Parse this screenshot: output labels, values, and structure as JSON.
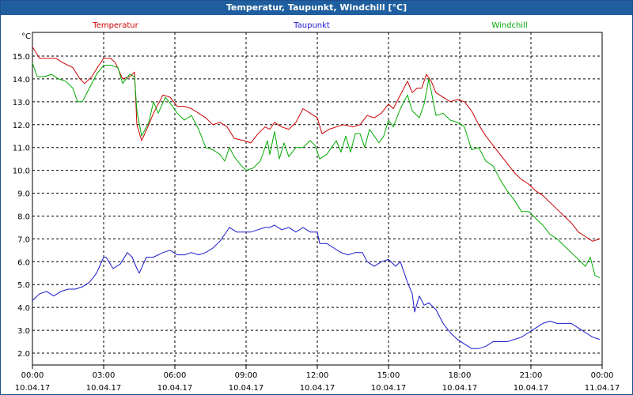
{
  "window": {
    "title": "Temperatur, Taupunkt, Windchill [°C]"
  },
  "chart_data": {
    "type": "line",
    "title": "Temperatur, Taupunkt, Windchill [°C]",
    "ylabel": "°C",
    "ylim": [
      1.5,
      15.5
    ],
    "yticks": [
      "2.0",
      "3.0",
      "4.0",
      "5.0",
      "6.0",
      "7.0",
      "8.0",
      "9.0",
      "10.0",
      "11.0",
      "12.0",
      "13.0",
      "14.0",
      "15.0"
    ],
    "xlim": [
      0,
      24
    ],
    "xticks": [
      {
        "time": "00:00",
        "date": "10.04.17"
      },
      {
        "time": "03:00",
        "date": "10.04.17"
      },
      {
        "time": "06:00",
        "date": "10.04.17"
      },
      {
        "time": "09:00",
        "date": "10.04.17"
      },
      {
        "time": "12:00",
        "date": "10.04.17"
      },
      {
        "time": "15:00",
        "date": "10.04.17"
      },
      {
        "time": "18:00",
        "date": "10.04.17"
      },
      {
        "time": "21:00",
        "date": "10.04.17"
      },
      {
        "time": "00:00",
        "date": "11.04.17"
      }
    ],
    "grid": true,
    "legend_position": "top",
    "series": [
      {
        "name": "Temperatur",
        "color": "#cc0000",
        "points": [
          [
            0.0,
            15.4
          ],
          [
            0.3,
            14.9
          ],
          [
            0.7,
            14.9
          ],
          [
            1.0,
            14.9
          ],
          [
            1.3,
            14.7
          ],
          [
            1.7,
            14.5
          ],
          [
            2.0,
            14.0
          ],
          [
            2.2,
            13.8
          ],
          [
            2.5,
            14.1
          ],
          [
            2.8,
            14.6
          ],
          [
            3.0,
            14.9
          ],
          [
            3.3,
            14.9
          ],
          [
            3.5,
            14.7
          ],
          [
            3.8,
            14.0
          ],
          [
            4.1,
            14.1
          ],
          [
            4.3,
            14.3
          ],
          [
            4.4,
            12.0
          ],
          [
            4.6,
            11.3
          ],
          [
            4.9,
            12.0
          ],
          [
            5.1,
            12.5
          ],
          [
            5.3,
            12.9
          ],
          [
            5.5,
            13.3
          ],
          [
            5.8,
            13.2
          ],
          [
            6.1,
            12.8
          ],
          [
            6.4,
            12.8
          ],
          [
            6.7,
            12.7
          ],
          [
            7.0,
            12.5
          ],
          [
            7.3,
            12.3
          ],
          [
            7.6,
            12.0
          ],
          [
            7.9,
            12.1
          ],
          [
            8.2,
            11.9
          ],
          [
            8.5,
            11.4
          ],
          [
            8.9,
            11.3
          ],
          [
            9.2,
            11.2
          ],
          [
            9.5,
            11.6
          ],
          [
            9.8,
            11.9
          ],
          [
            10.0,
            11.8
          ],
          [
            10.2,
            12.1
          ],
          [
            10.5,
            11.9
          ],
          [
            10.8,
            11.8
          ],
          [
            11.1,
            12.1
          ],
          [
            11.4,
            12.7
          ],
          [
            11.7,
            12.5
          ],
          [
            12.0,
            12.3
          ],
          [
            12.2,
            11.6
          ],
          [
            12.5,
            11.8
          ],
          [
            12.8,
            11.9
          ],
          [
            13.1,
            12.0
          ],
          [
            13.5,
            11.9
          ],
          [
            13.8,
            12.0
          ],
          [
            14.1,
            12.4
          ],
          [
            14.4,
            12.3
          ],
          [
            14.7,
            12.5
          ],
          [
            15.0,
            12.9
          ],
          [
            15.2,
            12.7
          ],
          [
            15.5,
            13.3
          ],
          [
            15.8,
            13.9
          ],
          [
            16.0,
            13.4
          ],
          [
            16.2,
            13.6
          ],
          [
            16.4,
            13.6
          ],
          [
            16.6,
            14.2
          ],
          [
            16.8,
            13.9
          ],
          [
            17.0,
            13.4
          ],
          [
            17.3,
            13.2
          ],
          [
            17.6,
            13.0
          ],
          [
            17.9,
            13.1
          ],
          [
            18.2,
            13.0
          ],
          [
            18.5,
            12.6
          ],
          [
            18.8,
            12.0
          ],
          [
            19.1,
            11.5
          ],
          [
            19.4,
            11.1
          ],
          [
            19.7,
            10.7
          ],
          [
            20.0,
            10.3
          ],
          [
            20.3,
            9.9
          ],
          [
            20.6,
            9.6
          ],
          [
            20.9,
            9.4
          ],
          [
            21.2,
            9.1
          ],
          [
            21.5,
            8.9
          ],
          [
            21.8,
            8.6
          ],
          [
            22.1,
            8.3
          ],
          [
            22.4,
            8.0
          ],
          [
            22.7,
            7.7
          ],
          [
            23.0,
            7.3
          ],
          [
            23.3,
            7.1
          ],
          [
            23.6,
            6.9
          ],
          [
            23.9,
            7.0
          ]
        ]
      },
      {
        "name": "Taupunkt",
        "color": "#1a1acc",
        "points": [
          [
            0.0,
            4.3
          ],
          [
            0.3,
            4.6
          ],
          [
            0.6,
            4.7
          ],
          [
            0.9,
            4.5
          ],
          [
            1.2,
            4.7
          ],
          [
            1.5,
            4.8
          ],
          [
            1.8,
            4.8
          ],
          [
            2.1,
            4.9
          ],
          [
            2.4,
            5.1
          ],
          [
            2.7,
            5.5
          ],
          [
            3.0,
            6.2
          ],
          [
            3.1,
            6.2
          ],
          [
            3.4,
            5.7
          ],
          [
            3.7,
            5.9
          ],
          [
            4.0,
            6.4
          ],
          [
            4.2,
            6.2
          ],
          [
            4.4,
            5.7
          ],
          [
            4.5,
            5.5
          ],
          [
            4.8,
            6.2
          ],
          [
            5.1,
            6.2
          ],
          [
            5.5,
            6.4
          ],
          [
            5.8,
            6.5
          ],
          [
            6.1,
            6.3
          ],
          [
            6.4,
            6.3
          ],
          [
            6.7,
            6.4
          ],
          [
            7.0,
            6.3
          ],
          [
            7.3,
            6.4
          ],
          [
            7.6,
            6.6
          ],
          [
            7.9,
            6.9
          ],
          [
            8.1,
            7.2
          ],
          [
            8.3,
            7.5
          ],
          [
            8.6,
            7.3
          ],
          [
            8.9,
            7.3
          ],
          [
            9.2,
            7.3
          ],
          [
            9.5,
            7.4
          ],
          [
            9.8,
            7.5
          ],
          [
            10.0,
            7.5
          ],
          [
            10.2,
            7.6
          ],
          [
            10.5,
            7.4
          ],
          [
            10.8,
            7.5
          ],
          [
            11.1,
            7.3
          ],
          [
            11.4,
            7.5
          ],
          [
            11.7,
            7.3
          ],
          [
            12.0,
            7.3
          ],
          [
            12.1,
            6.8
          ],
          [
            12.4,
            6.8
          ],
          [
            12.7,
            6.6
          ],
          [
            13.0,
            6.4
          ],
          [
            13.3,
            6.3
          ],
          [
            13.6,
            6.4
          ],
          [
            13.9,
            6.4
          ],
          [
            14.1,
            6.0
          ],
          [
            14.4,
            5.8
          ],
          [
            14.7,
            6.0
          ],
          [
            15.0,
            6.1
          ],
          [
            15.3,
            5.8
          ],
          [
            15.5,
            6.0
          ],
          [
            15.8,
            5.1
          ],
          [
            16.0,
            4.6
          ],
          [
            16.1,
            3.8
          ],
          [
            16.3,
            4.5
          ],
          [
            16.5,
            4.1
          ],
          [
            16.7,
            4.2
          ],
          [
            17.0,
            3.9
          ],
          [
            17.3,
            3.3
          ],
          [
            17.6,
            2.9
          ],
          [
            17.9,
            2.6
          ],
          [
            18.2,
            2.4
          ],
          [
            18.5,
            2.2
          ],
          [
            18.8,
            2.2
          ],
          [
            19.1,
            2.3
          ],
          [
            19.4,
            2.5
          ],
          [
            19.7,
            2.5
          ],
          [
            20.0,
            2.5
          ],
          [
            20.3,
            2.6
          ],
          [
            20.6,
            2.7
          ],
          [
            20.9,
            2.9
          ],
          [
            21.2,
            3.1
          ],
          [
            21.5,
            3.3
          ],
          [
            21.8,
            3.4
          ],
          [
            22.1,
            3.3
          ],
          [
            22.4,
            3.3
          ],
          [
            22.7,
            3.3
          ],
          [
            23.0,
            3.1
          ],
          [
            23.3,
            2.9
          ],
          [
            23.6,
            2.7
          ],
          [
            23.9,
            2.6
          ]
        ]
      },
      {
        "name": "Windchill",
        "color": "#00aa00",
        "points": [
          [
            0.0,
            14.7
          ],
          [
            0.2,
            14.1
          ],
          [
            0.5,
            14.1
          ],
          [
            0.8,
            14.2
          ],
          [
            1.1,
            14.0
          ],
          [
            1.4,
            13.9
          ],
          [
            1.7,
            13.6
          ],
          [
            1.9,
            13.0
          ],
          [
            2.1,
            13.0
          ],
          [
            2.4,
            13.6
          ],
          [
            2.7,
            14.2
          ],
          [
            3.0,
            14.6
          ],
          [
            3.3,
            14.6
          ],
          [
            3.6,
            14.5
          ],
          [
            3.8,
            13.8
          ],
          [
            4.1,
            14.2
          ],
          [
            4.3,
            14.1
          ],
          [
            4.4,
            12.6
          ],
          [
            4.6,
            11.5
          ],
          [
            4.9,
            12.1
          ],
          [
            5.1,
            13.0
          ],
          [
            5.3,
            12.5
          ],
          [
            5.6,
            13.2
          ],
          [
            5.9,
            12.8
          ],
          [
            6.1,
            12.5
          ],
          [
            6.4,
            12.2
          ],
          [
            6.7,
            12.4
          ],
          [
            7.0,
            11.8
          ],
          [
            7.3,
            11.0
          ],
          [
            7.6,
            10.9
          ],
          [
            7.9,
            10.7
          ],
          [
            8.1,
            10.4
          ],
          [
            8.3,
            11.0
          ],
          [
            8.5,
            10.6
          ],
          [
            8.8,
            10.2
          ],
          [
            9.0,
            10.0
          ],
          [
            9.3,
            10.1
          ],
          [
            9.6,
            10.4
          ],
          [
            9.9,
            11.3
          ],
          [
            10.0,
            10.7
          ],
          [
            10.2,
            11.7
          ],
          [
            10.4,
            10.5
          ],
          [
            10.6,
            11.2
          ],
          [
            10.8,
            10.6
          ],
          [
            11.1,
            11.0
          ],
          [
            11.4,
            11.0
          ],
          [
            11.7,
            11.3
          ],
          [
            11.9,
            11.1
          ],
          [
            12.1,
            10.5
          ],
          [
            12.4,
            10.7
          ],
          [
            12.6,
            11.0
          ],
          [
            12.8,
            11.3
          ],
          [
            13.0,
            10.8
          ],
          [
            13.2,
            11.5
          ],
          [
            13.4,
            10.8
          ],
          [
            13.6,
            11.6
          ],
          [
            13.8,
            11.6
          ],
          [
            14.0,
            11.0
          ],
          [
            14.2,
            11.8
          ],
          [
            14.4,
            11.5
          ],
          [
            14.6,
            11.2
          ],
          [
            14.8,
            11.5
          ],
          [
            15.0,
            12.2
          ],
          [
            15.2,
            11.9
          ],
          [
            15.5,
            12.7
          ],
          [
            15.8,
            13.3
          ],
          [
            16.0,
            12.6
          ],
          [
            16.3,
            12.3
          ],
          [
            16.5,
            12.9
          ],
          [
            16.7,
            14.0
          ],
          [
            17.0,
            12.4
          ],
          [
            17.3,
            12.5
          ],
          [
            17.6,
            12.2
          ],
          [
            17.9,
            12.1
          ],
          [
            18.2,
            11.9
          ],
          [
            18.5,
            10.9
          ],
          [
            18.8,
            11.0
          ],
          [
            19.1,
            10.4
          ],
          [
            19.4,
            10.2
          ],
          [
            19.7,
            9.6
          ],
          [
            20.0,
            9.1
          ],
          [
            20.3,
            8.7
          ],
          [
            20.6,
            8.2
          ],
          [
            20.9,
            8.2
          ],
          [
            21.2,
            7.9
          ],
          [
            21.5,
            7.6
          ],
          [
            21.8,
            7.2
          ],
          [
            22.1,
            7.0
          ],
          [
            22.4,
            6.7
          ],
          [
            22.7,
            6.4
          ],
          [
            23.0,
            6.1
          ],
          [
            23.3,
            5.8
          ],
          [
            23.5,
            6.2
          ],
          [
            23.7,
            5.4
          ],
          [
            23.9,
            5.3
          ]
        ]
      }
    ]
  }
}
